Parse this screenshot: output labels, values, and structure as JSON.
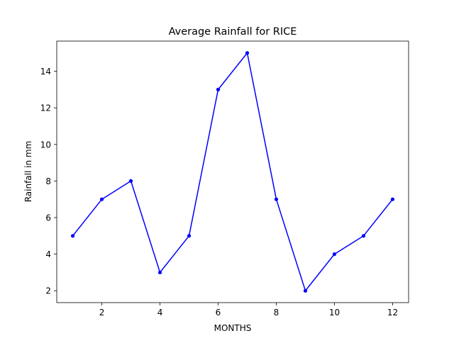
{
  "chart_data": {
    "type": "line",
    "title": "Average Rainfall for RICE",
    "xlabel": "MONTHS",
    "ylabel": "Rainfall in mm",
    "x": [
      1,
      2,
      3,
      4,
      5,
      6,
      7,
      8,
      9,
      10,
      11,
      12
    ],
    "series": [
      {
        "values": [
          5,
          7,
          8,
          3,
          5,
          13,
          15,
          7,
          2,
          4,
          5,
          7
        ],
        "color": "#0000ff",
        "marker": "dot"
      }
    ],
    "xlim": [
      0.45,
      12.55
    ],
    "ylim": [
      1.35,
      15.65
    ],
    "xticks": [
      2,
      4,
      6,
      8,
      10,
      12
    ],
    "yticks": [
      2,
      4,
      6,
      8,
      10,
      12,
      14
    ],
    "grid": false,
    "legend": "none"
  }
}
